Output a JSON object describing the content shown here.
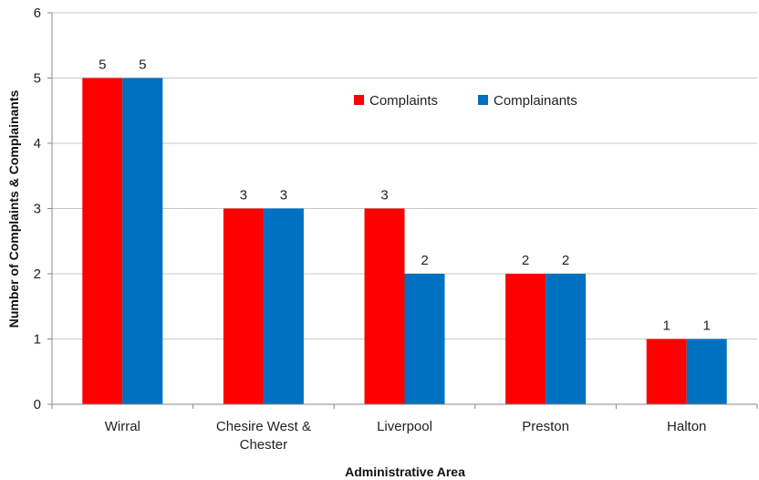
{
  "chart_data": {
    "type": "bar",
    "title": "",
    "xlabel": "Administrative Area",
    "ylabel": "Number of Complaints & Complainants",
    "ylim": [
      0,
      6
    ],
    "yticks": [
      0,
      1,
      2,
      3,
      4,
      5,
      6
    ],
    "grid": true,
    "legend_position": "top-right",
    "categories": [
      [
        "Wirral"
      ],
      [
        "Chesire West &",
        "Chester"
      ],
      [
        "Liverpool"
      ],
      [
        "Preston"
      ],
      [
        "Halton"
      ]
    ],
    "series": [
      {
        "name": "Complaints",
        "color": "#FF0000",
        "values": [
          5,
          3,
          3,
          2,
          1
        ]
      },
      {
        "name": "Complainants",
        "color": "#0070C0",
        "values": [
          5,
          3,
          2,
          2,
          1
        ]
      }
    ]
  }
}
